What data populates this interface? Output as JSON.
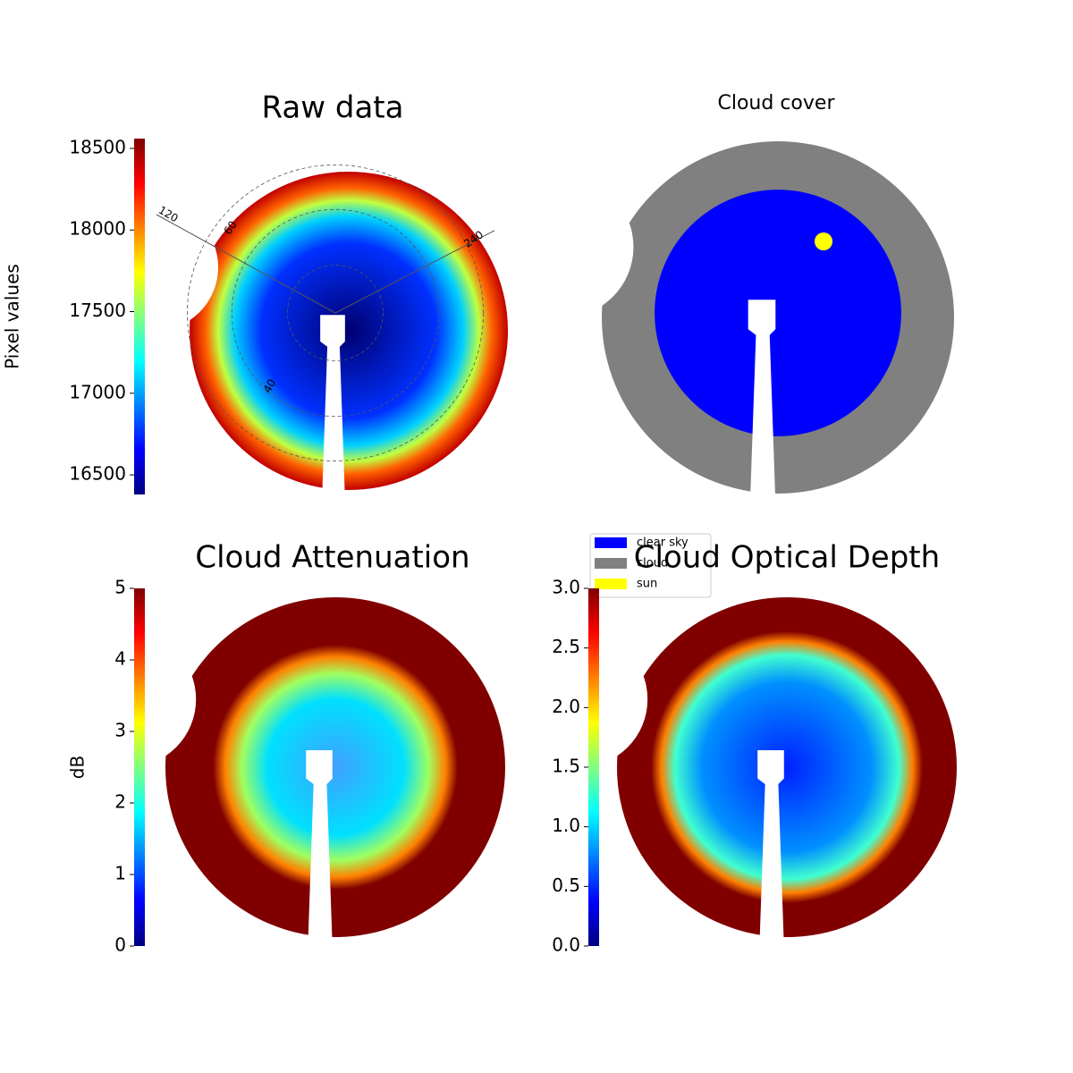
{
  "chart_data": [
    {
      "type": "image",
      "title": "Raw data",
      "colormap": "jet",
      "ylabel": "Pixel values",
      "ylim": [
        16380,
        18560
      ],
      "yticks": [
        16500,
        17000,
        17500,
        18000,
        18500
      ],
      "polar_labels": [
        "120",
        "60",
        "240",
        "40"
      ]
    },
    {
      "type": "image",
      "title": "Cloud cover",
      "legend": [
        {
          "name": "clear sky",
          "color": "#0000ff"
        },
        {
          "name": "cloud",
          "color": "#808080"
        },
        {
          "name": "sun",
          "color": "#ffff00"
        }
      ]
    },
    {
      "type": "image",
      "title": "Cloud Attenuation",
      "colormap": "jet",
      "ylabel": "dB",
      "ylim": [
        0,
        5
      ],
      "yticks": [
        0,
        1,
        2,
        3,
        4,
        5
      ]
    },
    {
      "type": "image",
      "title": "Cloud Optical Depth",
      "colormap": "jet",
      "ylim": [
        0,
        3
      ],
      "yticks": [
        {
          "value": 0,
          "label": "0.0"
        },
        {
          "value": 0.5,
          "label": "0.5"
        },
        {
          "value": 1,
          "label": "1.0"
        },
        {
          "value": 1.5,
          "label": "1.5"
        },
        {
          "value": 2,
          "label": "2.0"
        },
        {
          "value": 2.5,
          "label": "2.5"
        },
        {
          "value": 3,
          "label": "3.0"
        }
      ]
    }
  ]
}
